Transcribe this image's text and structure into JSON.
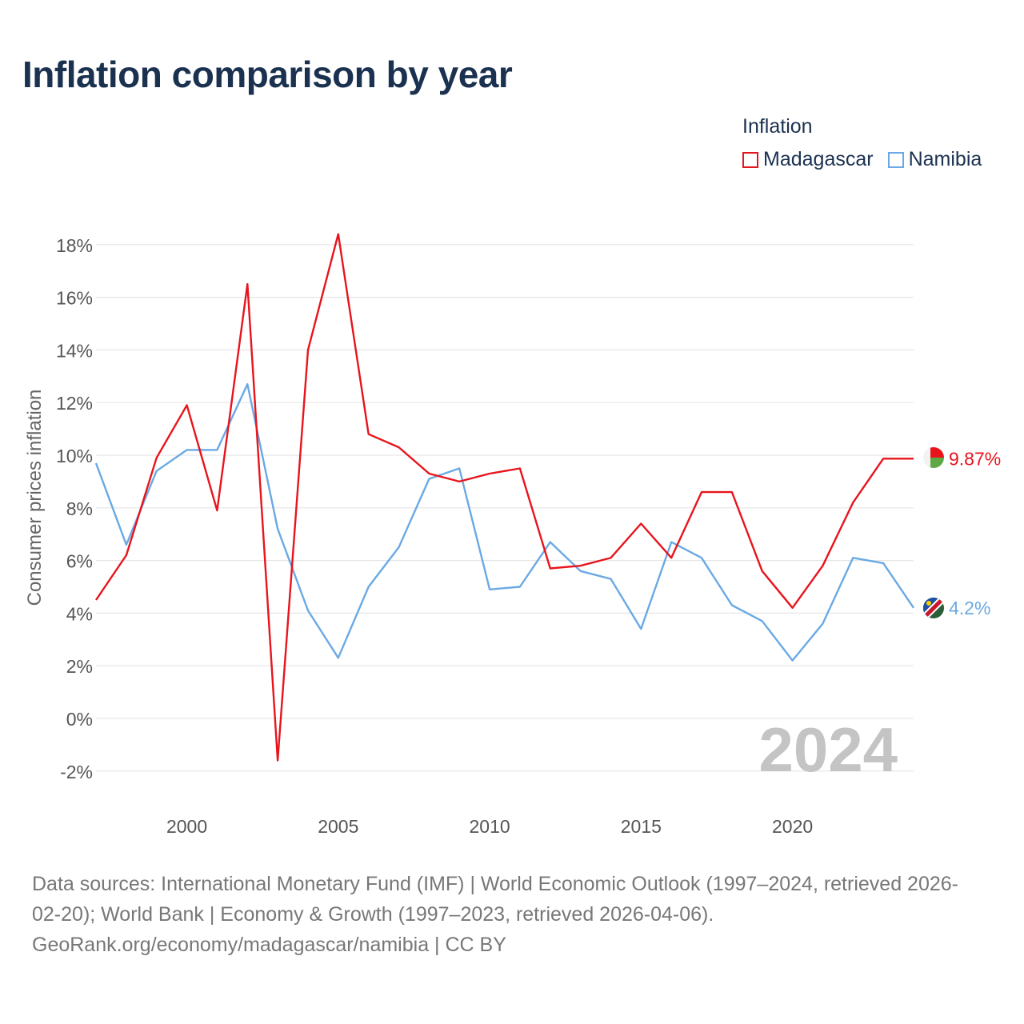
{
  "title": "Inflation comparison by year",
  "legend": {
    "title": "Inflation",
    "items": [
      {
        "label": "Madagascar",
        "color": "#e8141c"
      },
      {
        "label": "Namibia",
        "color": "#6aa9e4"
      }
    ]
  },
  "watermark_year": "2024",
  "chart_data": {
    "type": "line",
    "title": "Inflation comparison by year",
    "xlabel": "",
    "ylabel": "Consumer prices inflation",
    "xlim": [
      1997,
      2024
    ],
    "ylim": [
      -3,
      19
    ],
    "x_ticks": [
      2000,
      2005,
      2010,
      2015,
      2020
    ],
    "y_ticks": [
      -2,
      0,
      2,
      4,
      6,
      8,
      10,
      12,
      14,
      16,
      18
    ],
    "y_tick_labels": [
      "-2%",
      "0%",
      "2%",
      "4%",
      "6%",
      "8%",
      "10%",
      "12%",
      "14%",
      "16%",
      "18%"
    ],
    "x": [
      1997,
      1998,
      1999,
      2000,
      2001,
      2002,
      2003,
      2004,
      2005,
      2006,
      2007,
      2008,
      2009,
      2010,
      2011,
      2012,
      2013,
      2014,
      2015,
      2016,
      2017,
      2018,
      2019,
      2020,
      2021,
      2022,
      2023,
      2024
    ],
    "series": [
      {
        "name": "Madagascar",
        "color": "#e8141c",
        "values": [
          4.5,
          6.2,
          9.9,
          11.9,
          7.9,
          16.5,
          -1.6,
          14.0,
          18.4,
          10.8,
          10.3,
          9.3,
          9.0,
          9.3,
          9.5,
          5.7,
          5.8,
          6.1,
          7.4,
          6.1,
          8.6,
          8.6,
          5.6,
          4.2,
          5.8,
          8.2,
          9.87,
          9.87
        ],
        "end_label": "9.87%"
      },
      {
        "name": "Namibia",
        "color": "#6aa9e4",
        "values": [
          9.7,
          6.6,
          9.4,
          10.2,
          10.2,
          12.7,
          7.2,
          4.1,
          2.3,
          5.0,
          6.5,
          9.1,
          9.5,
          4.9,
          5.0,
          6.7,
          5.6,
          5.3,
          3.4,
          6.7,
          6.1,
          4.3,
          3.7,
          2.2,
          3.6,
          6.1,
          5.9,
          4.2
        ],
        "end_label": "4.2%"
      }
    ]
  },
  "sources": {
    "line1": "Data sources: International Monetary Fund (IMF) | World Economic Outlook (1997–2024, retrieved 2026-",
    "line2": "02-20); World Bank | Economy & Growth (1997–2023, retrieved 2026-04-06).",
    "line3": "GeoRank.org/economy/madagascar/namibia | CC BY"
  }
}
